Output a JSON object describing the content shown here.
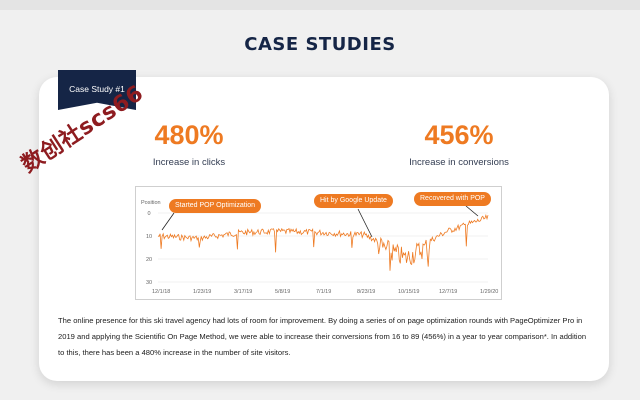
{
  "page_title": "CASE STUDIES",
  "ribbon_label": "Case Study #1",
  "stats": [
    {
      "value": "480%",
      "label": "Increase in clicks"
    },
    {
      "value": "456%",
      "label": "Increase in conversions"
    }
  ],
  "watermark": "数创社scs66",
  "chart": {
    "ylabel": "Position",
    "yticks": [
      0,
      10,
      20,
      30
    ],
    "xticks": [
      "12/1/18",
      "1/23/19",
      "3/17/19",
      "5/8/19",
      "7/1/19",
      "8/23/19",
      "10/15/19",
      "12/7/19",
      "1/29/20"
    ],
    "annotations": [
      "Started POP Optimization",
      "Hit by Google Update",
      "Recovered with POP"
    ],
    "line_color": "#ee7a22",
    "accent_color": "#ee7a22"
  },
  "chart_data": {
    "type": "line",
    "x": [
      "12/1/18",
      "1/23/19",
      "3/17/19",
      "5/8/19",
      "7/1/19",
      "8/23/19",
      "10/15/19",
      "12/7/19",
      "1/29/20"
    ],
    "series": [
      {
        "values": [
          10,
          11,
          8.5,
          8,
          8.5,
          9.5,
          18,
          8,
          2
        ]
      }
    ],
    "ylabel": "Position",
    "ylim": [
      30,
      0
    ]
  },
  "description": "The online presence for this ski travel agency had lots of room for improvement. By doing a series of on page optimization rounds with PageOptimizer Pro in 2019 and applying the Scientific On Page Method, we were able to increase their conversions from 16 to 89 (456%) in a year to year comparison*. In addition to this, there has been a 480% increase in the number of site visitors."
}
